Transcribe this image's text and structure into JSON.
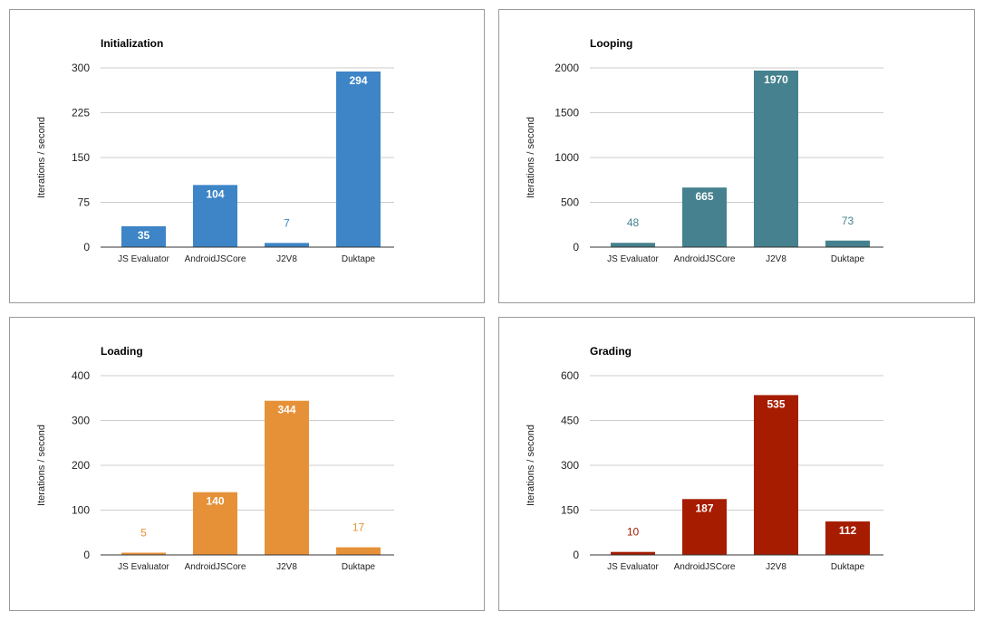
{
  "chart_data": [
    {
      "type": "bar",
      "title": "Initialization",
      "ylabel": "Iterations / second",
      "xlabel": "",
      "categories": [
        "JS Evaluator",
        "AndroidJSCore",
        "J2V8",
        "Duktape"
      ],
      "values": [
        35,
        104,
        7,
        294
      ],
      "value_labels": [
        "35",
        "104",
        "7",
        "294"
      ],
      "ylim": [
        0,
        300
      ],
      "yticks": [
        0,
        75,
        150,
        225,
        300
      ],
      "ytick_labels": [
        "0",
        "75",
        "150",
        "225",
        "300"
      ],
      "color": "#3d85c6",
      "grid": true,
      "legend": "none"
    },
    {
      "type": "bar",
      "title": "Looping",
      "ylabel": "Iterations / second",
      "xlabel": "",
      "categories": [
        "JS Evaluator",
        "AndroidJSCore",
        "J2V8",
        "Duktape"
      ],
      "values": [
        48,
        665,
        1970,
        73
      ],
      "value_labels": [
        "48",
        "665",
        "1970",
        "73"
      ],
      "ylim": [
        0,
        2000
      ],
      "yticks": [
        0,
        500,
        1000,
        1500,
        2000
      ],
      "ytick_labels": [
        "0",
        "500",
        "1000",
        "1500",
        "2000"
      ],
      "color": "#45818e",
      "grid": true,
      "legend": "none"
    },
    {
      "type": "bar",
      "title": "Loading",
      "ylabel": "Iterations / second",
      "xlabel": "",
      "categories": [
        "JS Evaluator",
        "AndroidJSCore",
        "J2V8",
        "Duktape"
      ],
      "values": [
        5,
        140,
        344,
        17
      ],
      "value_labels": [
        "5",
        "140",
        "344",
        "17"
      ],
      "ylim": [
        0,
        400
      ],
      "yticks": [
        0,
        100,
        200,
        300,
        400
      ],
      "ytick_labels": [
        "0",
        "100",
        "200",
        "300",
        "400"
      ],
      "color": "#e69138",
      "grid": true,
      "legend": "none"
    },
    {
      "type": "bar",
      "title": "Grading",
      "ylabel": "Iterations / second",
      "xlabel": "",
      "categories": [
        "JS Evaluator",
        "AndroidJSCore",
        "J2V8",
        "Duktape"
      ],
      "values": [
        10,
        187,
        535,
        112
      ],
      "value_labels": [
        "10",
        "187",
        "535",
        "112"
      ],
      "ylim": [
        0,
        600
      ],
      "yticks": [
        0,
        150,
        300,
        450,
        600
      ],
      "ytick_labels": [
        "0",
        "150",
        "300",
        "450",
        "600"
      ],
      "color": "#a61c00",
      "grid": true,
      "legend": "none"
    }
  ]
}
